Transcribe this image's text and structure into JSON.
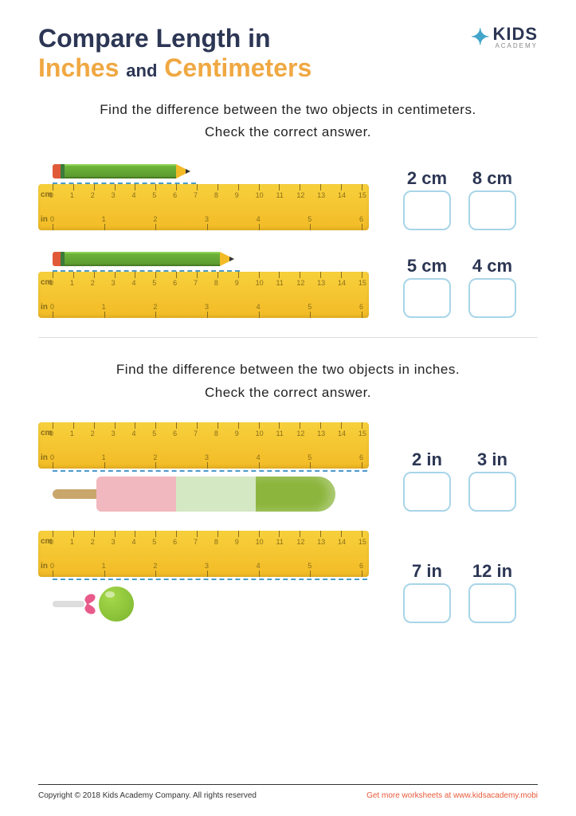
{
  "title": {
    "line1": "Compare Length in",
    "word1": "Inches",
    "and": "and",
    "word2": "Centimeters"
  },
  "logo": {
    "brand": "KIDS",
    "sub": "ACADEMY"
  },
  "section1": {
    "instructions_l1": "Find the difference between the two objects in centimeters.",
    "instructions_l2": "Check the correct answer.",
    "pencil1_width": 140,
    "pencil2_width": 195,
    "answers": [
      "2 cm",
      "8 cm",
      "5 cm",
      "4 cm"
    ]
  },
  "section2": {
    "instructions_l1": "Find the difference between the two objects in inches.",
    "instructions_l2": "Check the correct answer.",
    "answers": [
      "2 in",
      "3 in",
      "7 in",
      "12 in"
    ]
  },
  "ruler": {
    "cm_label": "cm",
    "in_label": "in",
    "cm_ticks": [
      "0",
      "1",
      "2",
      "3",
      "4",
      "5",
      "6",
      "7",
      "8",
      "9",
      "10",
      "11",
      "12",
      "13",
      "14",
      "15"
    ],
    "in_ticks": [
      "0",
      "1",
      "2",
      "3",
      "4",
      "5",
      "6"
    ],
    "colors": {
      "body": "#f2bb26",
      "tick": "#8a6d1a"
    }
  },
  "footer": {
    "copyright": "Copyright © 2018 Kids Academy Company. All rights reserved",
    "more": "Get more worksheets at www.kidsacademy.mobi"
  },
  "colors": {
    "navy": "#2c3654",
    "orange": "#f0a842",
    "box_border": "#a8d5e8",
    "link": "#e85a3a"
  }
}
